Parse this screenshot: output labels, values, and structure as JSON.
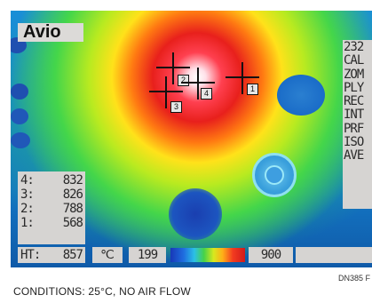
{
  "brand": {
    "logo_text": "Avio"
  },
  "menu": {
    "items": [
      "232",
      "CAL",
      "ZOM",
      "PLY",
      "REC",
      "INT",
      "PRF",
      "ISO",
      "AVE"
    ]
  },
  "readings": [
    {
      "label": "4:",
      "value": "832"
    },
    {
      "label": "3:",
      "value": "826"
    },
    {
      "label": "2:",
      "value": "788"
    },
    {
      "label": "1:",
      "value": "568"
    }
  ],
  "status": {
    "ht_label": "HT:",
    "ht_value": "857",
    "unit": "℃",
    "scale_min": "199",
    "scale_max": "900"
  },
  "markers": [
    "1",
    "2",
    "3",
    "4"
  ],
  "caption": "CONDITIONS: 25°C, NO AIR FLOW",
  "figure_id": "DN385 F",
  "colors": {
    "panel": "#d6d4d2",
    "hot": "#e8201c",
    "cool": "#1476c4"
  }
}
